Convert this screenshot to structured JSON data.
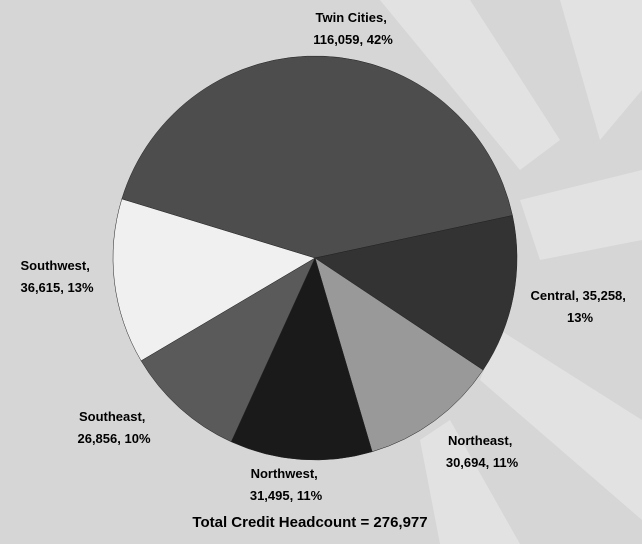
{
  "chart_data": {
    "type": "pie",
    "categories": [
      "Twin Cities",
      "Central",
      "Northeast",
      "Northwest",
      "Southeast",
      "Southwest"
    ],
    "values": [
      116059,
      35258,
      30694,
      31495,
      26856,
      36615
    ],
    "value_labels": [
      "116,059",
      "35,258",
      "30,694",
      "31,495",
      "26,856",
      "36,615"
    ],
    "percents": [
      42,
      13,
      11,
      11,
      10,
      13
    ],
    "percent_labels": [
      "42%",
      "13%",
      "11%",
      "11%",
      "10%",
      "13%"
    ],
    "label_separator": ", ",
    "colors": [
      "#4d4d4d",
      "#333333",
      "#999999",
      "#1a1a1a",
      "#5a5a5a",
      "#f0f0f0"
    ],
    "total_label": "Total Credit Headcount = 276,977"
  }
}
